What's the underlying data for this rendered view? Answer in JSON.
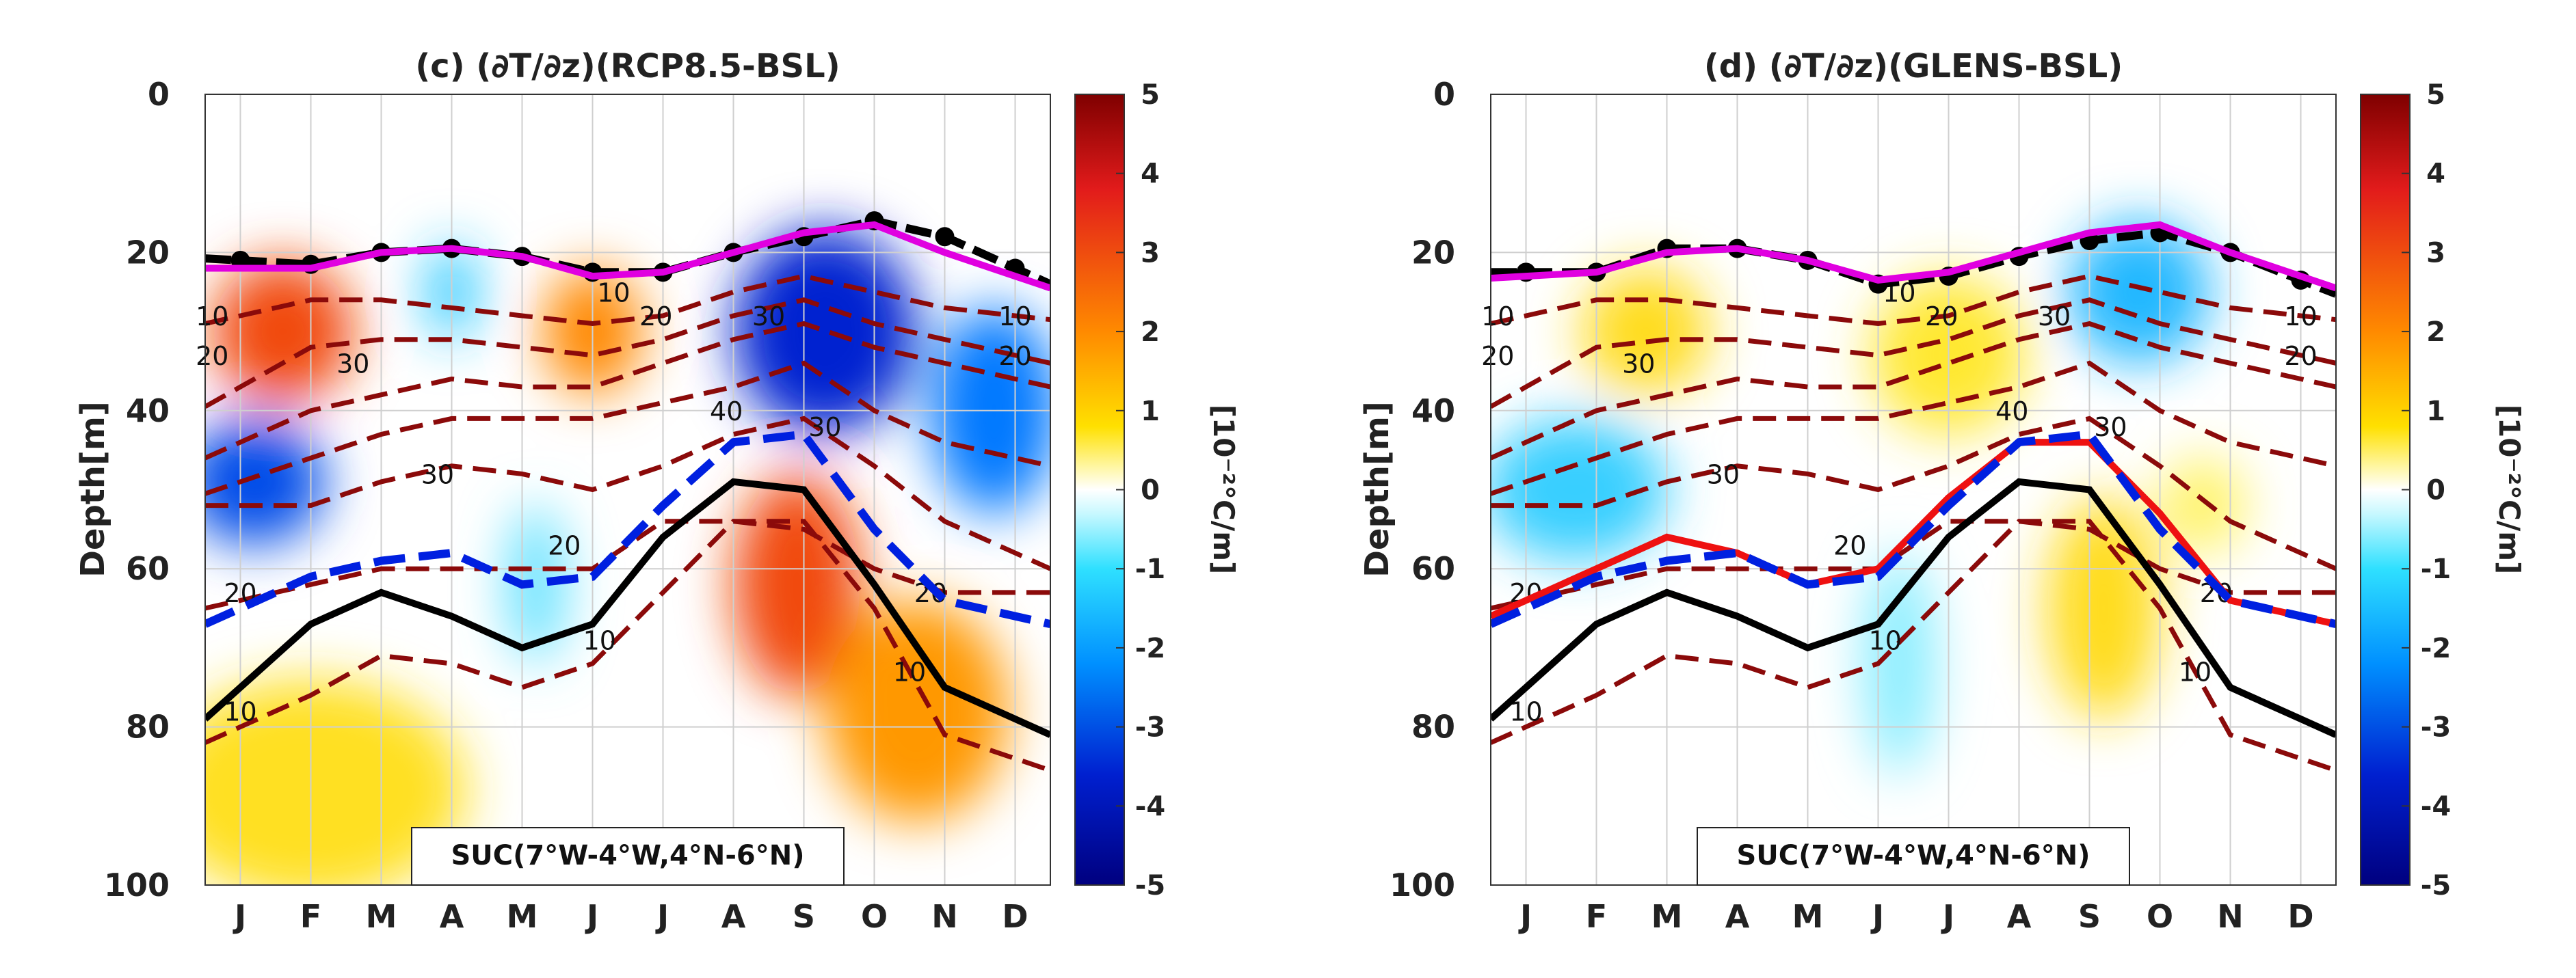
{
  "chart_data": [
    {
      "type": "contour",
      "panel": "c",
      "title": "(c) (∂T/∂z)(RCP8.5-BSL)",
      "xlabel": "",
      "ylabel": "Depth[m]",
      "months": [
        "J",
        "F",
        "M",
        "A",
        "M",
        "J",
        "J",
        "A",
        "S",
        "O",
        "N",
        "D"
      ],
      "ylim": [
        0,
        100
      ],
      "yticks": [
        0,
        20,
        40,
        60,
        80,
        100
      ],
      "region_label": "SUC(7°W-4°W,4°N-6°N)",
      "colorbar": {
        "label": "[10⁻²°C/m]",
        "range": [
          -5,
          5
        ],
        "ticks": [
          5,
          4,
          3,
          2,
          1,
          0,
          -1,
          -2,
          -3,
          -4,
          -5
        ]
      },
      "anomaly_blobs": [
        {
          "month": 1.6,
          "depth": 30,
          "rx": 1.0,
          "ry": 9,
          "value": 3.5
        },
        {
          "month": 4.0,
          "depth": 25,
          "rx": 0.35,
          "ry": 6,
          "value": -2.0
        },
        {
          "month": 6.0,
          "depth": 30,
          "rx": 0.7,
          "ry": 8,
          "value": 2.8
        },
        {
          "month": 9.3,
          "depth": 30,
          "rx": 1.3,
          "ry": 13,
          "value": -4.0
        },
        {
          "month": 11.7,
          "depth": 40,
          "rx": 0.9,
          "ry": 13,
          "value": -3.0
        },
        {
          "month": 1.2,
          "depth": 49,
          "rx": 1.0,
          "ry": 8,
          "value": -3.5
        },
        {
          "month": 5.2,
          "depth": 62,
          "rx": 0.4,
          "ry": 10,
          "value": -1.3
        },
        {
          "month": 8.9,
          "depth": 62,
          "rx": 0.9,
          "ry": 14,
          "value": 3.5
        },
        {
          "month": 10.6,
          "depth": 78,
          "rx": 1.3,
          "ry": 14,
          "value": 2.6
        },
        {
          "month": 2.0,
          "depth": 88,
          "rx": 2.2,
          "ry": 14,
          "value": 1.4
        }
      ],
      "lines": [
        {
          "name": "black-dashed-markers",
          "style": "black-dashed-dots",
          "depths": [
            21,
            21.5,
            20,
            19.5,
            20.5,
            22.5,
            22.5,
            20,
            18,
            16,
            18,
            22
          ]
        },
        {
          "name": "magenta",
          "color": "#e000e0",
          "depths": [
            22,
            22,
            20,
            19.5,
            20.5,
            23,
            22.5,
            20,
            17.5,
            16.5,
            20,
            23
          ]
        },
        {
          "name": "blue-dashed",
          "color": "#0020e0",
          "depths": [
            65,
            61,
            59,
            58,
            62,
            61,
            52,
            44,
            43,
            55,
            64,
            66
          ]
        },
        {
          "name": "black-solid",
          "color": "#000000",
          "depths": [
            75,
            67,
            63,
            66,
            70,
            67,
            56,
            49,
            50,
            62,
            75,
            79
          ]
        }
      ],
      "contour_lines": [
        {
          "level": 10,
          "depths": [
            28,
            26,
            26,
            27,
            28,
            29,
            28,
            25,
            23,
            25,
            27,
            28
          ],
          "label_month": 0.6
        },
        {
          "level": 20,
          "depths": [
            37,
            32,
            31,
            31,
            32,
            33,
            31,
            28,
            26,
            29,
            31,
            33
          ],
          "label_month": 0.6
        },
        {
          "level": 30,
          "depths": [
            44,
            40,
            38,
            36,
            37,
            37,
            34,
            31,
            29,
            32,
            34,
            36
          ],
          "label_month": 0.6
        },
        {
          "level": 40,
          "depths": [
            49,
            46,
            43,
            41,
            41,
            41,
            39,
            37,
            34,
            40,
            44,
            46
          ],
          "label_month": 6.5
        },
        {
          "level": 30,
          "depths": [
            52,
            52,
            49,
            47,
            48,
            50,
            47,
            43,
            41,
            47,
            54,
            58
          ],
          "label_month": 3.5
        },
        {
          "level": 20,
          "depths": [
            64,
            62,
            60,
            60,
            60,
            60,
            54,
            54,
            55,
            60,
            63,
            63
          ],
          "label_month": 0.7
        },
        {
          "level": 10,
          "depths": [
            80,
            76,
            71,
            72,
            75,
            72,
            63,
            54,
            54,
            65,
            81,
            84
          ],
          "label_month": 5.5
        }
      ],
      "contour_labels": [
        {
          "text": "10",
          "month": 0.6,
          "depth": 28
        },
        {
          "text": "20",
          "month": 0.6,
          "depth": 33
        },
        {
          "text": "30",
          "month": 2.6,
          "depth": 34
        },
        {
          "text": "10",
          "month": 6.3,
          "depth": 25
        },
        {
          "text": "20",
          "month": 6.9,
          "depth": 28
        },
        {
          "text": "30",
          "month": 8.5,
          "depth": 28
        },
        {
          "text": "10",
          "month": 12.0,
          "depth": 28
        },
        {
          "text": "20",
          "month": 12.0,
          "depth": 33
        },
        {
          "text": "40",
          "month": 7.9,
          "depth": 40
        },
        {
          "text": "30",
          "month": 9.3,
          "depth": 42
        },
        {
          "text": "30",
          "month": 3.8,
          "depth": 48
        },
        {
          "text": "20",
          "month": 1.0,
          "depth": 63
        },
        {
          "text": "20",
          "month": 5.6,
          "depth": 57
        },
        {
          "text": "20",
          "month": 10.8,
          "depth": 63
        },
        {
          "text": "10",
          "month": 6.1,
          "depth": 69
        },
        {
          "text": "10",
          "month": 10.5,
          "depth": 73
        },
        {
          "text": "10",
          "month": 1.0,
          "depth": 78
        }
      ]
    },
    {
      "type": "contour",
      "panel": "d",
      "title": "(d) (∂T/∂z)(GLENS-BSL)",
      "xlabel": "",
      "ylabel": "Depth[m]",
      "months": [
        "J",
        "F",
        "M",
        "A",
        "M",
        "J",
        "J",
        "A",
        "S",
        "O",
        "N",
        "D"
      ],
      "ylim": [
        0,
        100
      ],
      "yticks": [
        0,
        20,
        40,
        60,
        80,
        100
      ],
      "region_label": "SUC(7°W-4°W,4°N-6°N)",
      "colorbar": {
        "label": "[10⁻²°C/m]",
        "range": [
          -5,
          5
        ],
        "ticks": [
          5,
          4,
          3,
          2,
          1,
          0,
          -1,
          -2,
          -3,
          -4,
          -5
        ]
      },
      "anomaly_blobs": [
        {
          "month": 2.7,
          "depth": 30,
          "rx": 0.9,
          "ry": 8,
          "value": 1.5
        },
        {
          "month": 7.0,
          "depth": 33,
          "rx": 1.1,
          "ry": 10,
          "value": 1.2
        },
        {
          "month": 9.7,
          "depth": 25,
          "rx": 1.0,
          "ry": 9,
          "value": -2.2
        },
        {
          "month": 1.7,
          "depth": 50,
          "rx": 1.3,
          "ry": 9,
          "value": -1.8
        },
        {
          "month": 9.2,
          "depth": 65,
          "rx": 0.8,
          "ry": 14,
          "value": 1.5
        },
        {
          "month": 6.3,
          "depth": 72,
          "rx": 0.5,
          "ry": 14,
          "value": -0.9
        },
        {
          "month": 10.6,
          "depth": 52,
          "rx": 0.6,
          "ry": 6,
          "value": 0.8
        }
      ],
      "lines": [
        {
          "name": "black-dashed-markers",
          "style": "black-dashed-dots",
          "depths": [
            22.5,
            22.5,
            19.5,
            19.5,
            21,
            24,
            23,
            20.5,
            18.5,
            17.5,
            20,
            23.5
          ]
        },
        {
          "name": "magenta",
          "color": "#e000e0",
          "depths": [
            23,
            22.5,
            20,
            19.5,
            21,
            23.5,
            22.5,
            20,
            17.5,
            16.5,
            20,
            23
          ]
        },
        {
          "name": "red",
          "color": "#ee1111",
          "depths": [
            64,
            60,
            56,
            58,
            62,
            60,
            51,
            44,
            44,
            53,
            64,
            66
          ]
        },
        {
          "name": "blue-dashed",
          "color": "#0020e0",
          "depths": [
            65,
            61,
            59,
            58,
            62,
            61,
            52,
            44,
            43,
            55,
            64,
            66
          ]
        },
        {
          "name": "black-solid",
          "color": "#000000",
          "depths": [
            75,
            67,
            63,
            66,
            70,
            67,
            56,
            49,
            50,
            62,
            75,
            79
          ]
        }
      ],
      "contour_lines": [
        {
          "level": 10,
          "depths": [
            28,
            26,
            26,
            27,
            28,
            29,
            28,
            25,
            23,
            25,
            27,
            28
          ],
          "label_month": 0.6
        },
        {
          "level": 20,
          "depths": [
            37,
            32,
            31,
            31,
            32,
            33,
            31,
            28,
            26,
            29,
            31,
            33
          ],
          "label_month": 0.6
        },
        {
          "level": 30,
          "depths": [
            44,
            40,
            38,
            36,
            37,
            37,
            34,
            31,
            29,
            32,
            34,
            36
          ],
          "label_month": 0.6
        },
        {
          "level": 40,
          "depths": [
            49,
            46,
            43,
            41,
            41,
            41,
            39,
            37,
            34,
            40,
            44,
            46
          ],
          "label_month": 6.5
        },
        {
          "level": 30,
          "depths": [
            52,
            52,
            49,
            47,
            48,
            50,
            47,
            43,
            41,
            47,
            54,
            58
          ],
          "label_month": 3.5
        },
        {
          "level": 20,
          "depths": [
            64,
            62,
            60,
            60,
            60,
            60,
            54,
            54,
            55,
            60,
            63,
            63
          ],
          "label_month": 0.7
        },
        {
          "level": 10,
          "depths": [
            80,
            76,
            71,
            72,
            75,
            72,
            63,
            54,
            54,
            65,
            81,
            84
          ],
          "label_month": 5.5
        }
      ],
      "contour_labels": [
        {
          "text": "10",
          "month": 0.6,
          "depth": 28
        },
        {
          "text": "20",
          "month": 0.6,
          "depth": 33
        },
        {
          "text": "30",
          "month": 2.6,
          "depth": 34
        },
        {
          "text": "10",
          "month": 6.3,
          "depth": 25
        },
        {
          "text": "20",
          "month": 6.9,
          "depth": 28
        },
        {
          "text": "30",
          "month": 8.5,
          "depth": 28
        },
        {
          "text": "10",
          "month": 12.0,
          "depth": 28
        },
        {
          "text": "20",
          "month": 12.0,
          "depth": 33
        },
        {
          "text": "40",
          "month": 7.9,
          "depth": 40
        },
        {
          "text": "30",
          "month": 9.3,
          "depth": 42
        },
        {
          "text": "30",
          "month": 3.8,
          "depth": 48
        },
        {
          "text": "20",
          "month": 1.0,
          "depth": 63
        },
        {
          "text": "20",
          "month": 5.6,
          "depth": 57
        },
        {
          "text": "20",
          "month": 10.8,
          "depth": 63
        },
        {
          "text": "10",
          "month": 6.1,
          "depth": 69
        },
        {
          "text": "10",
          "month": 10.5,
          "depth": 73
        },
        {
          "text": "10",
          "month": 1.0,
          "depth": 78
        }
      ]
    }
  ]
}
